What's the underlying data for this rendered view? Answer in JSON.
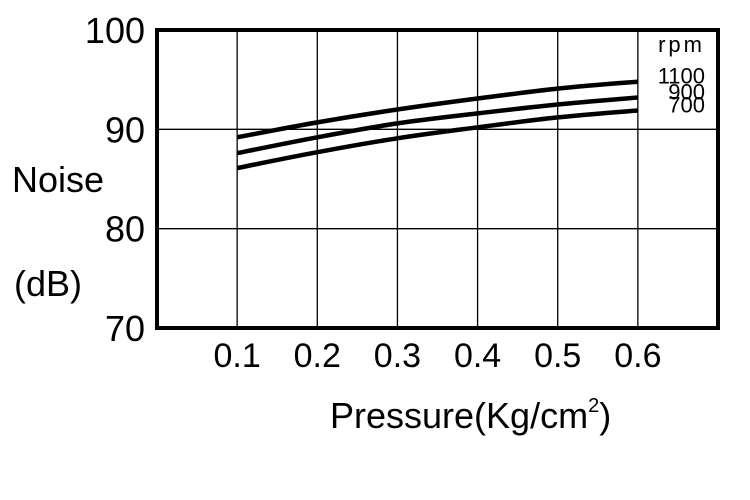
{
  "chart_data": {
    "type": "line",
    "title": "",
    "xlabel": "Pressure(Kg/cm²)",
    "xlabel_main": "Pressure(Kg/cm",
    "xlabel_sup": "2",
    "xlabel_tail": ")",
    "ylabel_line1": "Noise",
    "ylabel_line2": "(dB)",
    "ylim": [
      70,
      100
    ],
    "xlim": [
      0,
      0.7
    ],
    "y_ticks": [
      "70",
      "80",
      "90",
      "100"
    ],
    "x_ticks": [
      "0.1",
      "0.2",
      "0.3",
      "0.4",
      "0.5",
      "0.6"
    ],
    "grid": true,
    "legend_title": "rpm",
    "series": [
      {
        "name": "1100",
        "x": [
          0.1,
          0.2,
          0.3,
          0.4,
          0.5,
          0.6
        ],
        "values": [
          89.2,
          90.7,
          92.0,
          93.1,
          94.1,
          94.8
        ]
      },
      {
        "name": "900",
        "x": [
          0.1,
          0.2,
          0.3,
          0.4,
          0.5,
          0.6
        ],
        "values": [
          87.6,
          89.2,
          90.6,
          91.6,
          92.5,
          93.2
        ]
      },
      {
        "name": "700",
        "x": [
          0.1,
          0.2,
          0.3,
          0.4,
          0.5,
          0.6
        ],
        "values": [
          86.1,
          87.7,
          89.1,
          90.2,
          91.2,
          91.9
        ]
      }
    ]
  }
}
